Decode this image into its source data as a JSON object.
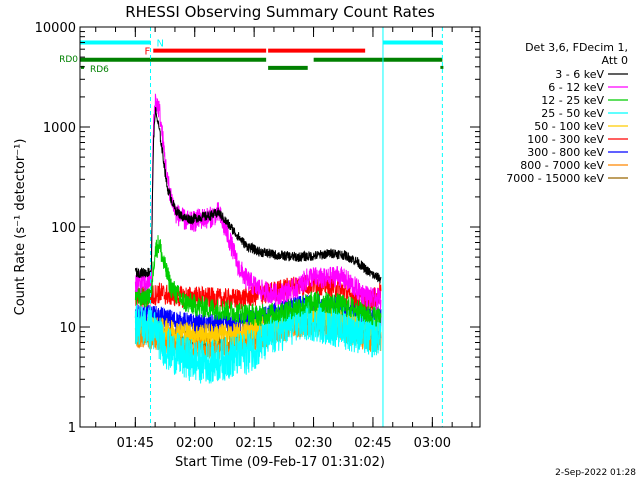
{
  "chart_data": {
    "type": "line",
    "title": "RHESSI Observing Summary Count Rates",
    "xlabel": "Start Time (09-Feb-17 01:31:02)",
    "ylabel": "Count Rate (s⁻¹ detector⁻¹)",
    "footer_date": "2-Sep-2022 01:28",
    "x_unit": "minutes after 01:31:02",
    "xlim": [
      0,
      101
    ],
    "ylim": [
      1,
      10000
    ],
    "y_scale": "log",
    "x_ticks": [
      {
        "label": "01:45",
        "value": 13.97
      },
      {
        "label": "02:00",
        "value": 28.97
      },
      {
        "label": "02:15",
        "value": 43.97
      },
      {
        "label": "02:30",
        "value": 58.97
      },
      {
        "label": "02:45",
        "value": 73.97
      },
      {
        "label": "03:00",
        "value": 88.97
      }
    ],
    "y_ticks": [
      {
        "label": "1",
        "value": 1
      },
      {
        "label": "10",
        "value": 10
      },
      {
        "label": "100",
        "value": 100
      },
      {
        "label": "1000",
        "value": 1000
      },
      {
        "label": "10000",
        "value": 10000
      }
    ],
    "legend": {
      "header": [
        "Det 3,6, FDecim 1,",
        "Att 0"
      ],
      "placement": "right"
    },
    "series": [
      {
        "name": "3 - 6 keV",
        "color": "#000000",
        "x": [
          14,
          17,
          18,
          18.5,
          19,
          20,
          21,
          22,
          24,
          26,
          28,
          30,
          33,
          35,
          36,
          38,
          40,
          42,
          45,
          50,
          55,
          60,
          64,
          67,
          70,
          72,
          74,
          76
        ],
        "y": [
          35,
          35,
          37,
          600,
          1500,
          950,
          500,
          250,
          150,
          125,
          120,
          125,
          130,
          140,
          125,
          100,
          80,
          65,
          57,
          52,
          50,
          52,
          55,
          52,
          45,
          38,
          33,
          30
        ]
      },
      {
        "name": "6 - 12 keV",
        "color": "#ff00ff",
        "x": [
          14,
          17,
          18,
          18.5,
          19,
          20,
          21,
          22,
          24,
          26,
          28,
          30,
          33,
          35,
          36,
          38,
          40,
          42,
          44,
          46,
          50,
          55,
          58,
          62,
          65,
          68,
          71,
          74,
          76
        ],
        "y": [
          28,
          28,
          30,
          900,
          1900,
          1500,
          700,
          300,
          140,
          120,
          110,
          120,
          125,
          140,
          110,
          70,
          40,
          30,
          26,
          23,
          21,
          25,
          32,
          30,
          33,
          28,
          22,
          19,
          19
        ]
      },
      {
        "name": "12 - 25 keV",
        "color": "#00cc00",
        "x": [
          14,
          17,
          18,
          18.5,
          19,
          20,
          21,
          23,
          26,
          30,
          35,
          40,
          45,
          50,
          55,
          60,
          65,
          70,
          74,
          76
        ],
        "y": [
          20,
          20,
          22,
          40,
          58,
          70,
          45,
          25,
          18,
          16,
          15,
          14,
          13,
          14,
          16,
          18,
          17,
          15,
          13,
          13
        ]
      },
      {
        "name": "25 - 50 keV",
        "color": "#00ffff",
        "x": [
          14,
          17,
          19,
          22,
          26,
          30,
          34,
          38,
          42,
          46,
          50,
          54,
          58,
          62,
          66,
          70,
          74,
          76
        ],
        "y": [
          11,
          10,
          9,
          6,
          5,
          4.5,
          4.5,
          5,
          5.5,
          7,
          9,
          11,
          12,
          11,
          10,
          9,
          8,
          9
        ]
      },
      {
        "name": "50 - 100 keV",
        "color": "#ffcc00",
        "x": [
          14,
          18,
          22,
          26,
          30,
          35,
          40,
          45,
          50,
          55,
          60,
          65,
          70,
          74,
          76
        ],
        "y": [
          11,
          10,
          9.5,
          9,
          8.5,
          8.5,
          8.5,
          10,
          11,
          12.5,
          13,
          12,
          11,
          10,
          10
        ]
      },
      {
        "name": "100 - 300 keV",
        "color": "#ff0000",
        "x": [
          14,
          17,
          19,
          20,
          22,
          26,
          30,
          35,
          40,
          45,
          50,
          55,
          60,
          65,
          67,
          70,
          73,
          75,
          76
        ],
        "y": [
          20,
          20,
          21,
          22,
          21,
          20,
          20,
          19,
          19,
          21,
          23,
          26,
          27,
          25,
          22,
          19,
          18,
          20,
          23
        ]
      },
      {
        "name": "300 - 800 keV",
        "color": "#0000ff",
        "x": [
          14,
          18,
          22,
          26,
          30,
          35,
          40,
          45,
          50,
          55,
          60,
          65,
          70,
          74,
          76
        ],
        "y": [
          13,
          13,
          12,
          11,
          10.5,
          10.5,
          11,
          12,
          14,
          16,
          17,
          16,
          14,
          12,
          12
        ]
      },
      {
        "name": "800 - 7000 keV",
        "color": "#ff8800",
        "x": [
          14,
          18,
          22,
          26,
          30,
          35,
          40,
          45,
          50,
          55,
          60,
          65,
          70,
          74,
          76
        ],
        "y": [
          8,
          7.5,
          7,
          6.5,
          6,
          6,
          6.5,
          7.5,
          9,
          10,
          10.5,
          9.5,
          8,
          7,
          7
        ]
      },
      {
        "name": "7000 - 15000 keV",
        "color": "#996600",
        "x": [
          14,
          18,
          22,
          26,
          30,
          35,
          40,
          45,
          50,
          55,
          60,
          65,
          70,
          74,
          76
        ],
        "y": [
          9,
          8.5,
          8,
          7.5,
          7.5,
          7,
          7.5,
          8.5,
          10,
          11,
          11.5,
          10.5,
          9,
          8,
          8
        ]
      }
    ],
    "flag_bars": [
      {
        "label": "N",
        "color": "#00ffff",
        "segments": [
          [
            0,
            17.8
          ],
          [
            76.5,
            91.5
          ]
        ],
        "level": 7000
      },
      {
        "label": "F",
        "color": "#ff0000",
        "segments": [
          [
            18.5,
            47
          ],
          [
            47.5,
            72
          ]
        ],
        "level": 5800
      },
      {
        "label": "RD0",
        "color": "#008000",
        "segments": [
          [
            0,
            47
          ],
          [
            59,
            91.5
          ]
        ],
        "level": 4700
      },
      {
        "label": "RD6",
        "color": "#008000",
        "segments": [
          [
            47.5,
            57.5
          ]
        ],
        "level": 3900
      }
    ],
    "markers": [
      {
        "color": "#00ffff",
        "style": "solid",
        "x": 0
      },
      {
        "color": "#00ffff",
        "style": "dashed",
        "x": 17.8
      },
      {
        "color": "#00ffff",
        "style": "solid",
        "x": 76.5
      },
      {
        "color": "#00ffff",
        "style": "dashed",
        "x": 91.5
      }
    ]
  }
}
